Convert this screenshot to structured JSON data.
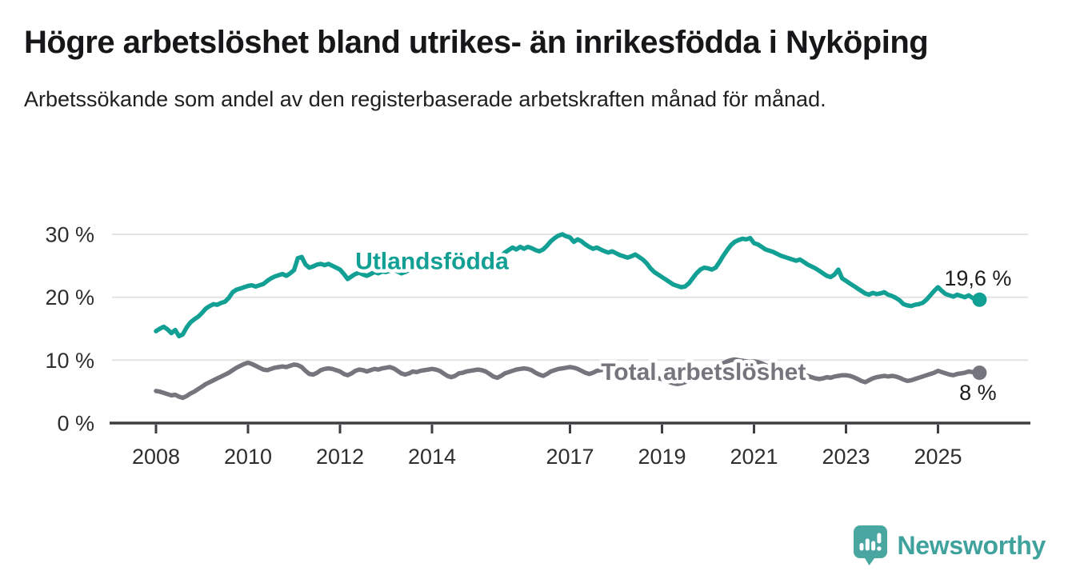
{
  "header": {
    "title": "Högre arbetslöshet bland utrikes- än inrikesfödda i Nyköping",
    "subtitle": "Arbetssökande som andel av den registerbaserade arbetskraften månad för månad."
  },
  "footer": {
    "brand": "Newsworthy"
  },
  "colors": {
    "series_foreign_born": "#12a095",
    "series_total": "#75757d",
    "gridline": "#e3e3e3",
    "axis": "#3e3e42",
    "tick_text": "#2e2e2e",
    "value_label_text": "#1c1c1e",
    "brand_teal": "#4aa6a1",
    "background": "#ffffff"
  },
  "chart_data": {
    "type": "line",
    "title": "Högre arbetslöshet bland utrikes- än inrikesfödda i Nyköping",
    "subtitle": "Arbetssökande som andel av den registerbaserade arbetskraften månad för månad.",
    "unit": "%",
    "x_start_year": 2008,
    "points_per_year": 12,
    "x_ticks": [
      2008,
      2010,
      2012,
      2014,
      2017,
      2019,
      2021,
      2023,
      2025
    ],
    "y_ticks": [
      0,
      10,
      20,
      30
    ],
    "tick_suffix": " %",
    "ylim": [
      0,
      33
    ],
    "xlim": [
      2007.05,
      2026.2
    ],
    "grid": "horizontal-only",
    "legend": "inline-series-labels",
    "series": [
      {
        "name": "Utlandsfödda",
        "color": "#12a095",
        "end_label": "19,6 %",
        "end_value": 19.6,
        "end_label_pos": "above",
        "label_anchor": {
          "year": 2014.0,
          "value": 24.5
        },
        "values": [
          14.6,
          15.0,
          15.3,
          14.9,
          14.3,
          14.8,
          13.8,
          14.1,
          15.2,
          16.0,
          16.5,
          16.9,
          17.5,
          18.2,
          18.6,
          18.9,
          18.8,
          19.1,
          19.3,
          19.9,
          20.8,
          21.2,
          21.4,
          21.6,
          21.8,
          21.9,
          21.7,
          21.9,
          22.1,
          22.6,
          23.0,
          23.3,
          23.5,
          23.7,
          23.4,
          23.8,
          24.3,
          26.2,
          26.4,
          25.2,
          24.7,
          24.9,
          25.2,
          25.3,
          25.1,
          25.3,
          25.0,
          24.7,
          24.4,
          23.7,
          22.9,
          23.3,
          23.7,
          23.9,
          23.6,
          23.4,
          23.7,
          24.0,
          23.8,
          24.1,
          24.0,
          24.2,
          24.4,
          24.1,
          23.8,
          24.0,
          24.3,
          24.6,
          24.4,
          24.7,
          24.9,
          25.1,
          25.0,
          25.2,
          25.4,
          25.1,
          24.8,
          25.0,
          25.3,
          25.6,
          25.4,
          25.6,
          25.8,
          26.0,
          25.8,
          26.0,
          26.2,
          25.9,
          25.7,
          25.9,
          26.5,
          27.1,
          27.5,
          27.9,
          27.6,
          28.0,
          27.7,
          28.0,
          27.8,
          27.5,
          27.3,
          27.6,
          28.2,
          28.9,
          29.4,
          29.8,
          30.0,
          29.7,
          29.5,
          28.8,
          29.2,
          28.9,
          28.4,
          28.0,
          27.7,
          27.9,
          27.6,
          27.3,
          27.1,
          27.3,
          27.0,
          26.7,
          26.5,
          26.3,
          26.5,
          26.8,
          26.4,
          26.0,
          25.4,
          24.6,
          24.0,
          23.6,
          23.2,
          22.8,
          22.4,
          22.0,
          21.8,
          21.6,
          21.7,
          22.2,
          23.0,
          23.8,
          24.4,
          24.7,
          24.6,
          24.4,
          24.7,
          25.6,
          26.6,
          27.5,
          28.3,
          28.8,
          29.1,
          29.3,
          29.2,
          29.4,
          28.6,
          28.4,
          28.0,
          27.6,
          27.4,
          27.2,
          26.9,
          26.6,
          26.4,
          26.2,
          26.0,
          25.8,
          26.0,
          25.6,
          25.2,
          24.9,
          24.6,
          24.2,
          23.8,
          23.4,
          23.2,
          23.6,
          24.4,
          23.0,
          22.6,
          22.2,
          21.8,
          21.4,
          21.0,
          20.6,
          20.4,
          20.7,
          20.5,
          20.6,
          20.8,
          20.4,
          20.2,
          19.9,
          19.5,
          18.9,
          18.7,
          18.6,
          18.8,
          18.9,
          19.1,
          19.6,
          20.3,
          21.0,
          21.6,
          21.0,
          20.5,
          20.3,
          20.1,
          20.4,
          20.2,
          20.0,
          20.3,
          19.9,
          19.6
        ]
      },
      {
        "name": "Total arbetslöshet",
        "color": "#75757d",
        "end_label": "8 %",
        "end_value": 8.0,
        "end_label_pos": "below",
        "label_anchor": {
          "year": 2019.9,
          "value": 6.85
        },
        "values": [
          5.1,
          5.0,
          4.8,
          4.6,
          4.4,
          4.5,
          4.2,
          4.0,
          4.3,
          4.7,
          5.0,
          5.4,
          5.8,
          6.2,
          6.5,
          6.8,
          7.1,
          7.4,
          7.7,
          8.0,
          8.4,
          8.8,
          9.1,
          9.4,
          9.6,
          9.4,
          9.1,
          8.8,
          8.5,
          8.4,
          8.6,
          8.8,
          8.9,
          9.0,
          8.9,
          9.1,
          9.3,
          9.2,
          8.9,
          8.3,
          7.8,
          7.7,
          8.0,
          8.4,
          8.6,
          8.7,
          8.6,
          8.4,
          8.2,
          7.8,
          7.6,
          7.9,
          8.3,
          8.5,
          8.4,
          8.2,
          8.4,
          8.6,
          8.5,
          8.7,
          8.8,
          8.9,
          8.7,
          8.3,
          7.9,
          7.7,
          7.9,
          8.2,
          8.1,
          8.3,
          8.4,
          8.5,
          8.6,
          8.5,
          8.3,
          7.9,
          7.5,
          7.3,
          7.5,
          7.9,
          8.0,
          8.2,
          8.3,
          8.4,
          8.5,
          8.4,
          8.2,
          7.8,
          7.4,
          7.2,
          7.5,
          7.9,
          8.1,
          8.3,
          8.5,
          8.6,
          8.7,
          8.6,
          8.4,
          8.0,
          7.7,
          7.5,
          7.8,
          8.2,
          8.4,
          8.6,
          8.7,
          8.8,
          8.9,
          8.8,
          8.6,
          8.3,
          8.0,
          7.8,
          8.0,
          8.3,
          8.4,
          8.5,
          8.6,
          8.5,
          8.4,
          8.2,
          8.0,
          7.7,
          7.4,
          7.2,
          7.3,
          7.5,
          7.4,
          7.3,
          7.2,
          7.1,
          7.0,
          6.8,
          6.5,
          6.3,
          6.2,
          6.3,
          6.5,
          6.8,
          7.0,
          7.2,
          7.4,
          7.6,
          7.8,
          8.0,
          8.4,
          9.0,
          9.5,
          9.8,
          10.0,
          10.1,
          10.0,
          9.9,
          9.8,
          9.7,
          9.8,
          9.7,
          9.5,
          9.2,
          8.9,
          8.6,
          8.4,
          8.2,
          8.0,
          7.9,
          7.8,
          7.7,
          7.8,
          7.7,
          7.5,
          7.3,
          7.1,
          7.0,
          7.1,
          7.3,
          7.2,
          7.4,
          7.5,
          7.6,
          7.6,
          7.5,
          7.3,
          7.0,
          6.7,
          6.5,
          6.8,
          7.1,
          7.3,
          7.4,
          7.5,
          7.4,
          7.5,
          7.4,
          7.2,
          6.9,
          6.7,
          6.8,
          7.0,
          7.2,
          7.4,
          7.6,
          7.8,
          8.0,
          8.3,
          8.1,
          7.9,
          7.7,
          7.6,
          7.8,
          7.9,
          8.0,
          8.2,
          8.1,
          8.0
        ]
      }
    ]
  }
}
